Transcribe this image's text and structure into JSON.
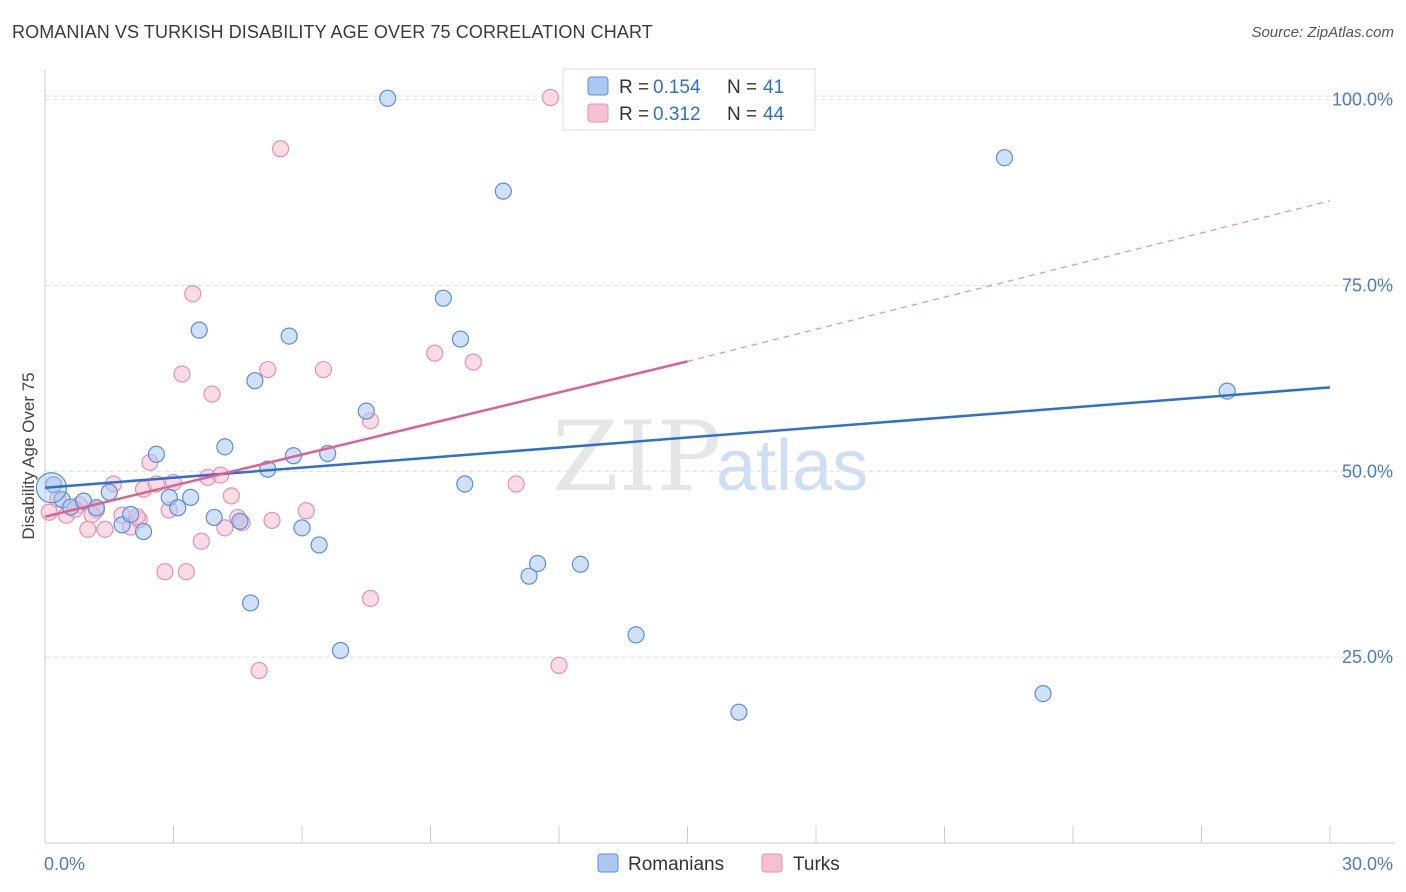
{
  "header": {
    "title": "ROMANIAN VS TURKISH DISABILITY AGE OVER 75 CORRELATION CHART",
    "source": "Source: ZipAtlas.com"
  },
  "watermark": {
    "zip": "ZIP",
    "atlas": "atlas"
  },
  "colors": {
    "romanians_fill": "#aac8f0",
    "romanians_stroke": "#5a8fd8",
    "romanians_line": "#2f6fd0",
    "turks_fill": "#f7c0d2",
    "turks_stroke": "#e890b0",
    "turks_line": "#e0608e",
    "grid": "#dddddd",
    "axis": "#cccccc"
  },
  "legend": {
    "romanians": {
      "r_label": "R = ",
      "r_value": "0.154",
      "n_label": "N = ",
      "n_value": "41"
    },
    "turks": {
      "r_label": "R = ",
      "r_value": "0.312",
      "n_label": "N = ",
      "n_value": "44"
    }
  },
  "chart_data": {
    "type": "scatter",
    "title": "ROMANIAN VS TURKISH DISABILITY AGE OVER 75 CORRELATION CHART",
    "xlabel": "",
    "ylabel": "Disability Age Over 75",
    "xlim": [
      0,
      30
    ],
    "ylim": [
      0,
      104
    ],
    "x_tick_labels": [
      "0.0%",
      "30.0%"
    ],
    "y_tick_values": [
      25,
      50,
      75,
      100
    ],
    "y_tick_labels": [
      "25.0%",
      "50.0%",
      "75.0%",
      "100.0%"
    ],
    "grid": true,
    "legend_position": "top-center",
    "series": [
      {
        "name": "Romanians",
        "R": 0.154,
        "N": 41,
        "trend": {
          "x": [
            0,
            30
          ],
          "y": [
            47.8,
            61.3
          ]
        },
        "points": [
          {
            "x": 0.2,
            "y": 48.2
          },
          {
            "x": 0.4,
            "y": 46.2
          },
          {
            "x": 0.6,
            "y": 45.2
          },
          {
            "x": 0.9,
            "y": 46.0
          },
          {
            "x": 1.2,
            "y": 45.1
          },
          {
            "x": 1.5,
            "y": 47.2
          },
          {
            "x": 1.8,
            "y": 42.8
          },
          {
            "x": 2.0,
            "y": 44.2
          },
          {
            "x": 2.3,
            "y": 41.9
          },
          {
            "x": 2.6,
            "y": 52.3
          },
          {
            "x": 2.9,
            "y": 46.5
          },
          {
            "x": 3.1,
            "y": 45.1
          },
          {
            "x": 3.4,
            "y": 46.5
          },
          {
            "x": 3.6,
            "y": 69.0
          },
          {
            "x": 3.95,
            "y": 43.8
          },
          {
            "x": 4.2,
            "y": 53.3
          },
          {
            "x": 4.55,
            "y": 43.3
          },
          {
            "x": 4.8,
            "y": 32.3
          },
          {
            "x": 4.9,
            "y": 62.2
          },
          {
            "x": 5.2,
            "y": 50.3
          },
          {
            "x": 5.7,
            "y": 68.2
          },
          {
            "x": 5.8,
            "y": 52.1
          },
          {
            "x": 6.0,
            "y": 42.4
          },
          {
            "x": 6.4,
            "y": 40.1
          },
          {
            "x": 6.6,
            "y": 52.4
          },
          {
            "x": 6.9,
            "y": 25.9
          },
          {
            "x": 7.5,
            "y": 58.1
          },
          {
            "x": 8.0,
            "y": 100.2
          },
          {
            "x": 9.3,
            "y": 73.3
          },
          {
            "x": 9.7,
            "y": 67.8
          },
          {
            "x": 9.8,
            "y": 48.3
          },
          {
            "x": 10.7,
            "y": 87.7
          },
          {
            "x": 11.3,
            "y": 35.9
          },
          {
            "x": 11.5,
            "y": 37.6
          },
          {
            "x": 12.5,
            "y": 37.5
          },
          {
            "x": 13.8,
            "y": 28.0
          },
          {
            "x": 16.2,
            "y": 17.6
          },
          {
            "x": 16.6,
            "y": 100.2
          },
          {
            "x": 22.4,
            "y": 92.2
          },
          {
            "x": 23.3,
            "y": 20.1
          },
          {
            "x": 27.6,
            "y": 60.8
          }
        ]
      },
      {
        "name": "Turks",
        "R": 0.312,
        "N": 44,
        "trend": {
          "x": [
            0,
            15
          ],
          "y": [
            43.9,
            64.8
          ]
        },
        "trend_dashed": {
          "x": [
            15,
            30
          ],
          "y": [
            64.8,
            86.4
          ]
        },
        "points": [
          {
            "x": 0.3,
            "y": 46.3
          },
          {
            "x": 0.5,
            "y": 44.1
          },
          {
            "x": 0.8,
            "y": 45.5
          },
          {
            "x": 1.0,
            "y": 42.2
          },
          {
            "x": 1.2,
            "y": 44.8
          },
          {
            "x": 1.4,
            "y": 42.2
          },
          {
            "x": 1.6,
            "y": 48.3
          },
          {
            "x": 1.8,
            "y": 44.1
          },
          {
            "x": 2.0,
            "y": 42.5
          },
          {
            "x": 2.2,
            "y": 43.5
          },
          {
            "x": 2.3,
            "y": 47.6
          },
          {
            "x": 2.45,
            "y": 51.2
          },
          {
            "x": 2.6,
            "y": 48.3
          },
          {
            "x": 2.8,
            "y": 36.5
          },
          {
            "x": 2.9,
            "y": 44.8
          },
          {
            "x": 3.0,
            "y": 48.5
          },
          {
            "x": 3.2,
            "y": 63.1
          },
          {
            "x": 3.3,
            "y": 36.5
          },
          {
            "x": 3.45,
            "y": 73.9
          },
          {
            "x": 3.65,
            "y": 40.6
          },
          {
            "x": 3.8,
            "y": 49.2
          },
          {
            "x": 3.9,
            "y": 60.4
          },
          {
            "x": 4.1,
            "y": 49.5
          },
          {
            "x": 4.2,
            "y": 42.4
          },
          {
            "x": 4.35,
            "y": 46.7
          },
          {
            "x": 4.5,
            "y": 43.8
          },
          {
            "x": 5.0,
            "y": 23.2
          },
          {
            "x": 5.2,
            "y": 63.7
          },
          {
            "x": 5.3,
            "y": 43.4
          },
          {
            "x": 5.5,
            "y": 93.4
          },
          {
            "x": 6.1,
            "y": 44.7
          },
          {
            "x": 6.5,
            "y": 63.7
          },
          {
            "x": 7.6,
            "y": 32.9
          },
          {
            "x": 7.6,
            "y": 56.8
          },
          {
            "x": 9.1,
            "y": 65.9
          },
          {
            "x": 10.0,
            "y": 64.7
          },
          {
            "x": 11.0,
            "y": 48.3
          },
          {
            "x": 11.8,
            "y": 100.3
          },
          {
            "x": 12.0,
            "y": 23.9
          },
          {
            "x": 0.1,
            "y": 44.5
          },
          {
            "x": 0.7,
            "y": 44.9
          },
          {
            "x": 1.1,
            "y": 44.2
          },
          {
            "x": 2.15,
            "y": 43.9
          },
          {
            "x": 4.6,
            "y": 43.1
          }
        ]
      }
    ]
  },
  "bottom_legend": {
    "romanians": "Romanians",
    "turks": "Turks"
  }
}
